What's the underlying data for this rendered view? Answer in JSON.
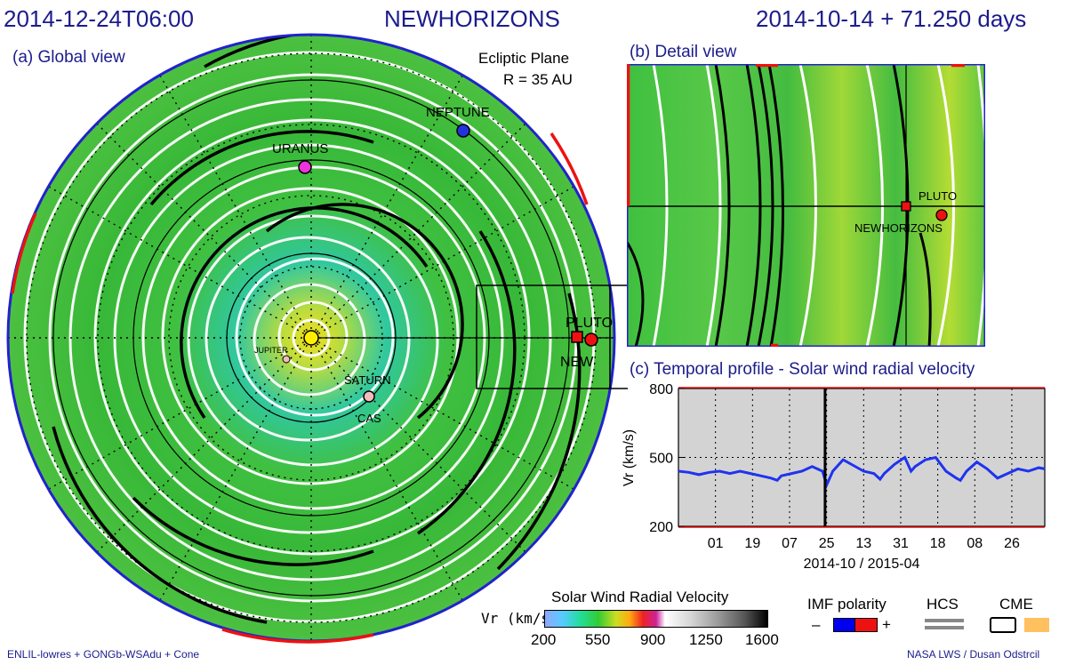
{
  "header": {
    "datetime": "2014-12-24T06:00",
    "target": "NEWHORIZONS",
    "elapsed": "2014-10-14 + 71.250 days"
  },
  "panels": {
    "global_title": "(a) Global view",
    "plane_label": "Ecliptic Plane",
    "radius_label": "R = 35 AU",
    "detail_title": "(b) Detail view",
    "temporal_title": "(c) Temporal profile - Solar wind radial velocity"
  },
  "bodies": {
    "neptune": "NEPTUNE",
    "uranus": "URANUS",
    "pluto": "PLUTO",
    "new": "NEW",
    "saturn": "SATURN",
    "cas": "CAS",
    "jupiter": "JUPITER",
    "detail_pluto": "PLUTO",
    "detail_newhorizons": "NEWHORIZONS"
  },
  "colors": {
    "title": "#1c1c8c",
    "neptune": "#2233dd",
    "uranus": "#ee33dd",
    "pluto": "#ee1111",
    "saturn": "#f4bbbb",
    "plot_bg": "#d3d3d3",
    "profile_line": "#1f33ee",
    "imf_negative": "#0000ee",
    "imf_positive": "#ee1111",
    "hcs": "#888888",
    "cme_fill": "#ffc060"
  },
  "chart_data": {
    "type": "line",
    "title": "(c) Temporal profile - Solar wind radial velocity",
    "ylabel": "Vr (km/s)",
    "xlabel": "2014-10 / 2015-04",
    "ylim": [
      200,
      800
    ],
    "yticks": [
      "800",
      "500",
      "200"
    ],
    "xticks": [
      "01",
      "19",
      "07",
      "25",
      "13",
      "31",
      "18",
      "08",
      "26"
    ],
    "grid": true,
    "current_time_index": 71.25,
    "x_days": [
      0,
      5,
      10,
      15,
      20,
      25,
      30,
      35,
      40,
      45,
      48,
      50,
      55,
      60,
      65,
      70,
      72,
      75,
      80,
      85,
      90,
      95,
      98,
      100,
      105,
      110,
      113,
      115,
      120,
      125,
      130,
      135,
      137,
      140,
      145,
      150,
      155,
      160,
      165,
      170,
      175,
      178
    ],
    "series": [
      {
        "values": [
          440,
          435,
          425,
          435,
          440,
          430,
          440,
          430,
          420,
          410,
          400,
          420,
          430,
          440,
          460,
          440,
          380,
          440,
          490,
          465,
          440,
          430,
          405,
          430,
          470,
          500,
          440,
          460,
          490,
          500,
          440,
          410,
          400,
          440,
          480,
          450,
          410,
          430,
          450,
          440,
          455,
          450
        ]
      }
    ]
  },
  "colorbar": {
    "title": "Solar Wind Radial Velocity",
    "unit_label": "Vr (km/s)",
    "ticks": [
      "200",
      "550",
      "900",
      "1250",
      "1600"
    ]
  },
  "legend": {
    "imf_title": "IMF polarity",
    "minus": "–",
    "plus": "+",
    "hcs_title": "HCS",
    "cme_title": "CME"
  },
  "footer": {
    "left": "ENLIL-lowres + GONGb-WSAdu + Cone",
    "right": "NASA LWS / Dusan Odstrcil"
  }
}
